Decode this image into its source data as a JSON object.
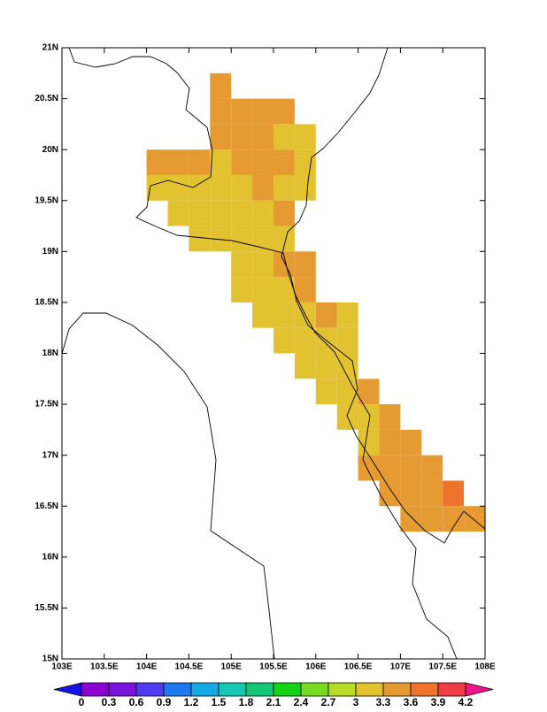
{
  "map": {
    "xlim": [
      103,
      108
    ],
    "ylim": [
      15,
      21
    ],
    "lon_ticks": [
      {
        "value": 103,
        "label": "103E"
      },
      {
        "value": 103.5,
        "label": "103.5E"
      },
      {
        "value": 104,
        "label": "104E"
      },
      {
        "value": 104.5,
        "label": "104.5E"
      },
      {
        "value": 105,
        "label": "105E"
      },
      {
        "value": 105.5,
        "label": "105.5E"
      },
      {
        "value": 106,
        "label": "106E"
      },
      {
        "value": 106.5,
        "label": "106.5E"
      },
      {
        "value": 107,
        "label": "107E"
      },
      {
        "value": 107.5,
        "label": "107.5E"
      },
      {
        "value": 108,
        "label": "108E"
      }
    ],
    "lat_ticks": [
      {
        "value": 15,
        "label": "15N"
      },
      {
        "value": 15.5,
        "label": "15.5N"
      },
      {
        "value": 16,
        "label": "16N"
      },
      {
        "value": 16.5,
        "label": "16.5N"
      },
      {
        "value": 17,
        "label": "17N"
      },
      {
        "value": 17.5,
        "label": "17.5N"
      },
      {
        "value": 18,
        "label": "18N"
      },
      {
        "value": 18.5,
        "label": "18.5N"
      },
      {
        "value": 19,
        "label": "19N"
      },
      {
        "value": 19.5,
        "label": "19.5N"
      },
      {
        "value": 20,
        "label": "20N"
      },
      {
        "value": 20.5,
        "label": "20.5N"
      },
      {
        "value": 21,
        "label": "21N"
      }
    ],
    "cell_size": 0.25,
    "cells": [
      [
        104.75,
        20.5,
        3.45
      ],
      [
        104.75,
        20.25,
        3.45
      ],
      [
        105,
        20.25,
        3.45
      ],
      [
        105.25,
        20.25,
        3.45
      ],
      [
        105.5,
        20.25,
        3.45
      ],
      [
        104.75,
        20,
        3.45
      ],
      [
        105,
        20,
        3.45
      ],
      [
        105.25,
        20,
        3.45
      ],
      [
        105.5,
        20,
        3.15
      ],
      [
        105.75,
        20,
        3.15
      ],
      [
        104,
        19.75,
        3.45
      ],
      [
        104.25,
        19.75,
        3.45
      ],
      [
        104.5,
        19.75,
        3.45
      ],
      [
        104.75,
        19.75,
        3.15
      ],
      [
        105,
        19.75,
        3.45
      ],
      [
        105.25,
        19.75,
        3.45
      ],
      [
        105.5,
        19.75,
        3.45
      ],
      [
        105.75,
        19.75,
        3.15
      ],
      [
        104,
        19.5,
        3.15
      ],
      [
        104.25,
        19.5,
        3.15
      ],
      [
        104.5,
        19.5,
        3.15
      ],
      [
        104.75,
        19.5,
        3.15
      ],
      [
        105,
        19.5,
        3.15
      ],
      [
        105.25,
        19.5,
        3.45
      ],
      [
        105.5,
        19.5,
        3.15
      ],
      [
        105.75,
        19.5,
        3.15
      ],
      [
        104.25,
        19.25,
        3.15
      ],
      [
        104.5,
        19.25,
        3.15
      ],
      [
        104.75,
        19.25,
        3.15
      ],
      [
        105,
        19.25,
        3.15
      ],
      [
        105.25,
        19.25,
        3.15
      ],
      [
        105.5,
        19.25,
        3.45
      ],
      [
        104.5,
        19,
        3.15
      ],
      [
        104.75,
        19,
        3.15
      ],
      [
        105,
        19,
        3.15
      ],
      [
        105.25,
        19,
        3.15
      ],
      [
        105.5,
        19,
        3.15
      ],
      [
        105,
        18.75,
        3.15
      ],
      [
        105.25,
        18.75,
        3.15
      ],
      [
        105.5,
        18.75,
        3.45
      ],
      [
        105.75,
        18.75,
        3.45
      ],
      [
        105,
        18.5,
        3.15
      ],
      [
        105.25,
        18.5,
        3.15
      ],
      [
        105.5,
        18.5,
        3.15
      ],
      [
        105.75,
        18.5,
        3.45
      ],
      [
        105.25,
        18.25,
        3.15
      ],
      [
        105.5,
        18.25,
        3.15
      ],
      [
        105.75,
        18.25,
        3.15
      ],
      [
        106,
        18.25,
        3.45
      ],
      [
        106.25,
        18.25,
        3.15
      ],
      [
        105.5,
        18,
        3.15
      ],
      [
        105.75,
        18,
        3.15
      ],
      [
        106,
        18,
        3.15
      ],
      [
        106.25,
        18,
        3.15
      ],
      [
        105.75,
        17.75,
        3.15
      ],
      [
        106,
        17.75,
        3.15
      ],
      [
        106.25,
        17.75,
        3.15
      ],
      [
        106,
        17.5,
        3.15
      ],
      [
        106.25,
        17.5,
        3.15
      ],
      [
        106.5,
        17.5,
        3.45
      ],
      [
        106.25,
        17.25,
        3.15
      ],
      [
        106.5,
        17.25,
        3.15
      ],
      [
        106.75,
        17.25,
        3.45
      ],
      [
        106.5,
        17,
        3.15
      ],
      [
        106.75,
        17,
        3.45
      ],
      [
        107,
        17,
        3.45
      ],
      [
        106.5,
        16.75,
        3.45
      ],
      [
        106.75,
        16.75,
        3.45
      ],
      [
        107,
        16.75,
        3.45
      ],
      [
        107.25,
        16.75,
        3.45
      ],
      [
        106.75,
        16.5,
        3.45
      ],
      [
        107,
        16.5,
        3.45
      ],
      [
        107.25,
        16.5,
        3.45
      ],
      [
        107.5,
        16.5,
        3.75
      ],
      [
        107,
        16.25,
        3.45
      ],
      [
        107.25,
        16.25,
        3.45
      ],
      [
        107.5,
        16.25,
        3.45
      ],
      [
        107.75,
        16.25,
        3.45
      ]
    ]
  },
  "colorbar": {
    "levels": [
      0,
      0.3,
      0.6,
      0.9,
      1.2,
      1.5,
      1.8,
      2.1,
      2.4,
      2.7,
      3,
      3.3,
      3.6,
      3.9,
      4.2
    ],
    "colors": [
      "#1414e6",
      "#8c00d2",
      "#7814dc",
      "#503cf0",
      "#1e78f0",
      "#14aae6",
      "#14c8b4",
      "#14c878",
      "#14d214",
      "#78dc1e",
      "#b4dc28",
      "#e3c232",
      "#e69b32",
      "#f0732d",
      "#f03c46",
      "#f0148c"
    ]
  }
}
